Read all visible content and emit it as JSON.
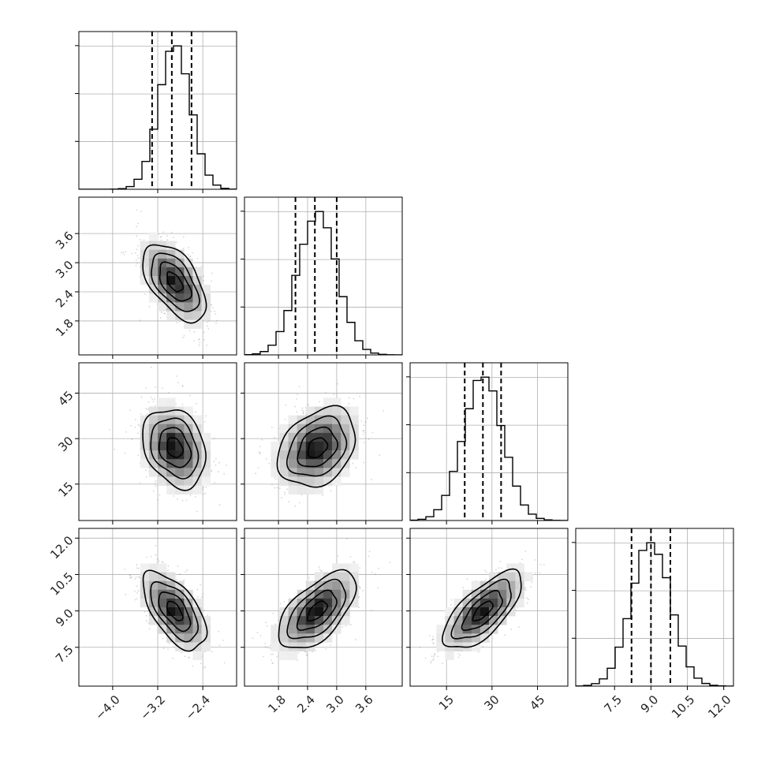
{
  "colors": {
    "frame": "#000000",
    "grid": "#b0b0b0",
    "scatter": "#8a8a8a",
    "density_dark": "#000000",
    "contour": "#000000"
  },
  "chart_data": {
    "type": "corner",
    "grid": true,
    "quantile_lines": "dashed",
    "parameters": [
      {
        "index": 0,
        "mean": -2.9,
        "std": 0.28,
        "range": [
          -4.6,
          -1.8
        ],
        "quantiles": [
          -3.3,
          -2.95,
          -2.6
        ],
        "ticks": [
          -4.0,
          -3.2,
          -2.4
        ],
        "tick_labels": [
          "−4.0",
          "−3.2",
          "−2.4"
        ]
      },
      {
        "index": 1,
        "mean": 2.6,
        "std": 0.4,
        "range": [
          1.1,
          4.35
        ],
        "quantiles": [
          2.15,
          2.55,
          3.0
        ],
        "ticks": [
          1.8,
          2.4,
          3.0,
          3.6
        ],
        "tick_labels": [
          "1.8",
          "2.4",
          "3.0",
          "3.6"
        ]
      },
      {
        "index": 2,
        "mean": 27,
        "std": 6.5,
        "range": [
          3,
          55
        ],
        "quantiles": [
          21,
          27,
          33
        ],
        "ticks": [
          15,
          30,
          45
        ],
        "tick_labels": [
          "15",
          "30",
          "45"
        ]
      },
      {
        "index": 3,
        "mean": 9.0,
        "std": 0.8,
        "range": [
          5.9,
          12.4
        ],
        "quantiles": [
          8.2,
          9.0,
          9.8
        ],
        "ticks": [
          7.5,
          9.0,
          10.5,
          12.0
        ],
        "tick_labels": [
          "7.5",
          "9.0",
          "10.5",
          "12.0"
        ]
      }
    ],
    "correlations": [
      {
        "pair": [
          0,
          1
        ],
        "r": -0.55
      },
      {
        "pair": [
          0,
          2
        ],
        "r": -0.25
      },
      {
        "pair": [
          1,
          2
        ],
        "r": 0.3
      },
      {
        "pair": [
          0,
          3
        ],
        "r": -0.6
      },
      {
        "pair": [
          1,
          3
        ],
        "r": 0.6
      },
      {
        "pair": [
          2,
          3
        ],
        "r": 0.7
      }
    ],
    "contour_levels": [
      0.5,
      1.0,
      1.5,
      2.0
    ]
  }
}
